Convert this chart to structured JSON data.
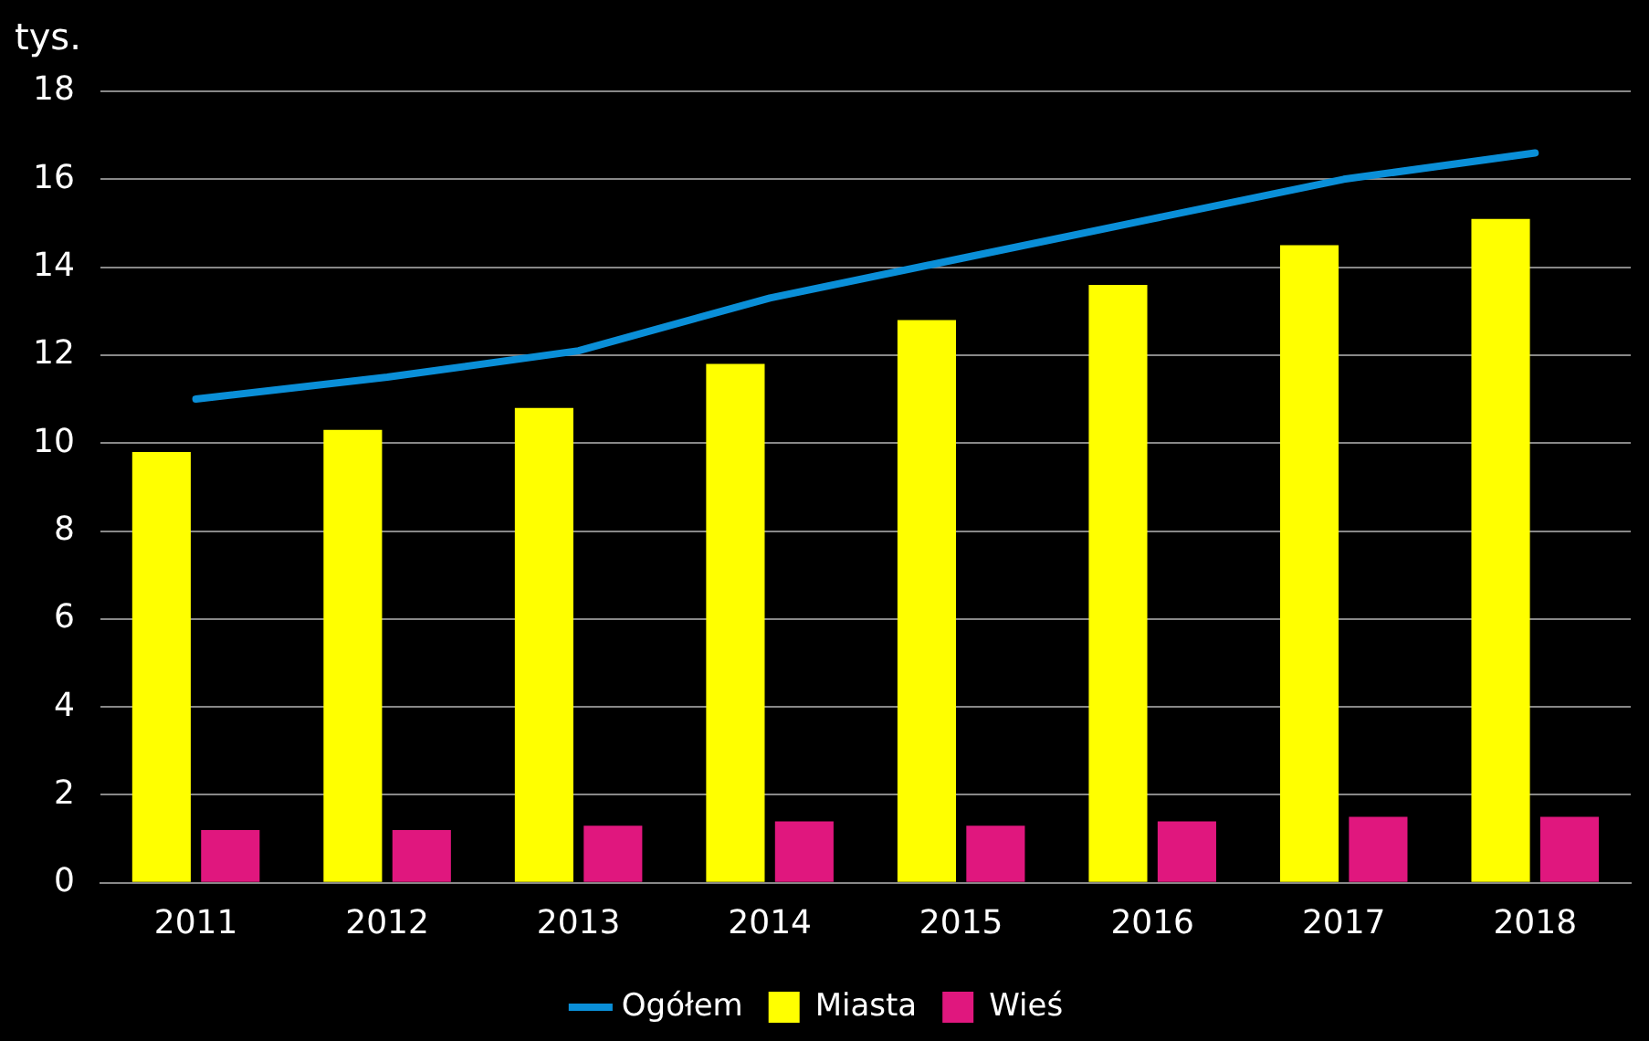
{
  "chart_data": {
    "type": "bar",
    "ylabel": "tys.",
    "categories": [
      "2011",
      "2012",
      "2013",
      "2014",
      "2015",
      "2016",
      "2017",
      "2018"
    ],
    "series": [
      {
        "name": "Ogółem",
        "type": "line",
        "color": "#0a8fd8",
        "values": [
          11.0,
          11.5,
          12.1,
          13.3,
          14.2,
          15.1,
          16.0,
          16.6
        ]
      },
      {
        "name": "Miasta",
        "color": "#ffff00",
        "values": [
          9.8,
          10.3,
          10.8,
          11.8,
          12.8,
          13.6,
          14.5,
          15.1
        ]
      },
      {
        "name": "Wieś",
        "color": "#e0177e",
        "values": [
          1.2,
          1.2,
          1.3,
          1.4,
          1.3,
          1.4,
          1.5,
          1.5
        ]
      }
    ],
    "ylim": [
      0,
      18
    ],
    "yticks": [
      0,
      2,
      4,
      6,
      8,
      10,
      12,
      14,
      16,
      18
    ],
    "grid": "y",
    "legend": "bottom",
    "marker": "none",
    "line_style": "solid"
  }
}
